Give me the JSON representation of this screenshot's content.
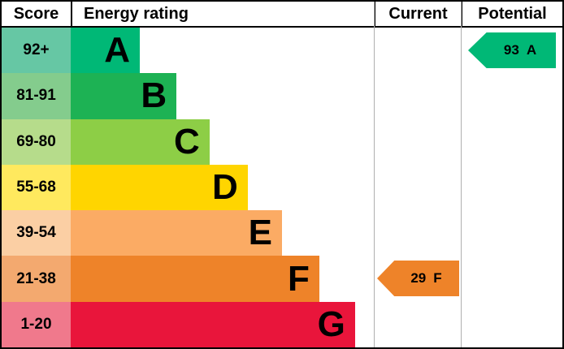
{
  "header": {
    "score": "Score",
    "energy_rating": "Energy rating",
    "current": "Current",
    "potential": "Potential"
  },
  "chart_data": {
    "type": "bar",
    "orientation": "horizontal",
    "description": "EPC energy rating band chart",
    "bands": [
      {
        "score": "92+",
        "letter": "A",
        "color": "#00b876",
        "tint": "#66c7a4",
        "width": "22.8%"
      },
      {
        "score": "81-91",
        "letter": "B",
        "color": "#1db254",
        "tint": "#84cc8d",
        "width": "34.9%"
      },
      {
        "score": "69-80",
        "letter": "C",
        "color": "#8dce46",
        "tint": "#b6dc8b",
        "width": "45.8%"
      },
      {
        "score": "55-68",
        "letter": "D",
        "color": "#ffd500",
        "tint": "#ffe95e",
        "width": "58.4%"
      },
      {
        "score": "39-54",
        "letter": "E",
        "color": "#fbab64",
        "tint": "#fbcfa4",
        "width": "69.7%"
      },
      {
        "score": "21-38",
        "letter": "F",
        "color": "#ee8329",
        "tint": "#f3a96f",
        "width": "82.0%"
      },
      {
        "score": "1-20",
        "letter": "G",
        "color": "#e9153b",
        "tint": "#f0798c",
        "width": "93.8%"
      }
    ],
    "current": {
      "value": "29",
      "letter": "F",
      "band": "21-38",
      "color": "#ee8329"
    },
    "potential": {
      "value": "93",
      "letter": "A",
      "band": "92+",
      "color": "#00b876"
    }
  }
}
